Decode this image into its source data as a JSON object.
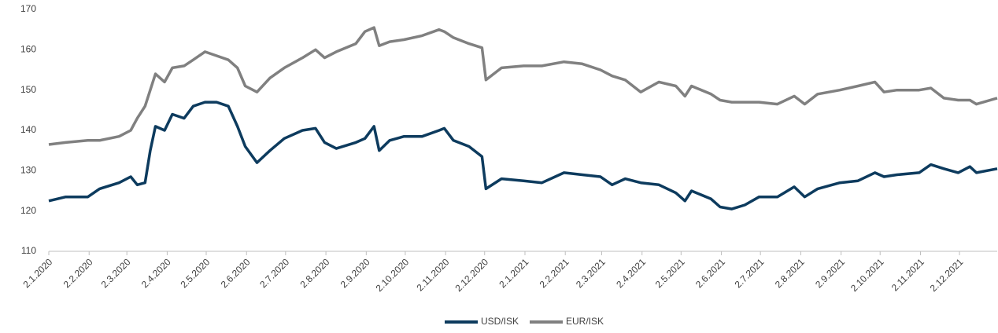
{
  "chart_data": {
    "type": "line",
    "x": [
      "2020-01-02",
      "2020-01-15",
      "2020-02-01",
      "2020-02-10",
      "2020-02-25",
      "2020-03-05",
      "2020-03-10",
      "2020-03-16",
      "2020-03-20",
      "2020-03-24",
      "2020-03-31",
      "2020-04-06",
      "2020-04-15",
      "2020-04-22",
      "2020-05-01",
      "2020-05-10",
      "2020-05-19",
      "2020-05-26",
      "2020-06-01",
      "2020-06-10",
      "2020-06-20",
      "2020-07-01",
      "2020-07-15",
      "2020-07-25",
      "2020-08-01",
      "2020-08-10",
      "2020-08-25",
      "2020-09-01",
      "2020-09-08",
      "2020-09-12",
      "2020-09-20",
      "2020-10-01",
      "2020-10-15",
      "2020-10-28",
      "2020-11-01",
      "2020-11-08",
      "2020-11-20",
      "2020-11-30",
      "2020-12-03",
      "2020-12-15",
      "2021-01-01",
      "2021-01-15",
      "2021-02-01",
      "2021-02-15",
      "2021-03-01",
      "2021-03-10",
      "2021-03-20",
      "2021-04-01",
      "2021-04-15",
      "2021-04-28",
      "2021-05-05",
      "2021-05-10",
      "2021-05-25",
      "2021-06-01",
      "2021-06-10",
      "2021-06-20",
      "2021-07-01",
      "2021-07-15",
      "2021-07-28",
      "2021-08-05",
      "2021-08-15",
      "2021-09-01",
      "2021-09-15",
      "2021-09-28",
      "2021-10-05",
      "2021-10-15",
      "2021-11-01",
      "2021-11-10",
      "2021-11-20",
      "2021-12-01",
      "2021-12-10",
      "2021-12-15",
      "2021-12-31"
    ],
    "series": [
      {
        "name": "USD/ISK",
        "color": "#0d3b5e",
        "values": [
          122.5,
          123.5,
          123.5,
          125.5,
          127,
          128.5,
          126.5,
          127,
          135,
          141,
          140,
          144,
          143,
          146,
          147,
          147,
          146,
          141,
          136,
          132,
          135,
          138,
          140,
          140.5,
          137,
          135.5,
          137,
          138,
          141,
          135,
          137.5,
          138.5,
          138.5,
          140,
          140.5,
          137.5,
          136,
          133.5,
          125.5,
          128,
          127.5,
          127,
          129.5,
          129,
          128.5,
          126.5,
          128,
          127,
          126.5,
          124.5,
          122.5,
          125,
          123,
          121,
          120.5,
          121.5,
          123.5,
          123.5,
          126,
          123.5,
          125.5,
          127,
          127.5,
          129.5,
          128.5,
          129,
          129.5,
          131.5,
          130.5,
          129.5,
          131,
          129.5,
          130.5
        ]
      },
      {
        "name": "EUR/ISK",
        "color": "#808080",
        "values": [
          136.5,
          137,
          137.5,
          137.5,
          138.5,
          140,
          143,
          146,
          150,
          154,
          152,
          155.5,
          156,
          157.5,
          159.5,
          158.5,
          157.5,
          155.5,
          151,
          149.5,
          153,
          155.5,
          158,
          160,
          158,
          159.5,
          161.5,
          164.5,
          165.5,
          161,
          162,
          162.5,
          163.5,
          165,
          164.5,
          163,
          161.5,
          160.5,
          152.5,
          155.5,
          156,
          156,
          157,
          156.5,
          155,
          153.5,
          152.5,
          149.5,
          152,
          151,
          148.5,
          151,
          149,
          147.5,
          147,
          147,
          147,
          146.5,
          148.5,
          146.5,
          149,
          150,
          151,
          152,
          149.5,
          150,
          150,
          150.5,
          148,
          147.5,
          147.5,
          146.5,
          148
        ]
      }
    ],
    "xlim": [
      "2020-01-02",
      "2021-12-31"
    ],
    "xticks": [
      {
        "value": "2020-01-02",
        "label": "2.1.2020"
      },
      {
        "value": "2020-02-02",
        "label": "2.2.2020"
      },
      {
        "value": "2020-03-02",
        "label": "2.3.2020"
      },
      {
        "value": "2020-04-02",
        "label": "2.4.2020"
      },
      {
        "value": "2020-05-02",
        "label": "2.5.2020"
      },
      {
        "value": "2020-06-02",
        "label": "2.6.2020"
      },
      {
        "value": "2020-07-02",
        "label": "2.7.2020"
      },
      {
        "value": "2020-08-02",
        "label": "2.8.2020"
      },
      {
        "value": "2020-09-02",
        "label": "2.9.2020"
      },
      {
        "value": "2020-10-02",
        "label": "2.10.2020"
      },
      {
        "value": "2020-11-02",
        "label": "2.11.2020"
      },
      {
        "value": "2020-12-02",
        "label": "2.12.2020"
      },
      {
        "value": "2021-01-02",
        "label": "2.1.2021"
      },
      {
        "value": "2021-02-02",
        "label": "2.2.2021"
      },
      {
        "value": "2021-03-02",
        "label": "2.3.2021"
      },
      {
        "value": "2021-04-02",
        "label": "2.4.2021"
      },
      {
        "value": "2021-05-02",
        "label": "2.5.2021"
      },
      {
        "value": "2021-06-02",
        "label": "2.6.2021"
      },
      {
        "value": "2021-07-02",
        "label": "2.7.2021"
      },
      {
        "value": "2021-08-02",
        "label": "2.8.2021"
      },
      {
        "value": "2021-09-02",
        "label": "2.9.2021"
      },
      {
        "value": "2021-10-02",
        "label": "2.10.2021"
      },
      {
        "value": "2021-11-02",
        "label": "2.11.2021"
      },
      {
        "value": "2021-12-02",
        "label": "2.12.2021"
      }
    ],
    "ylim": [
      110,
      170
    ],
    "yticks": [
      110,
      120,
      130,
      140,
      150,
      160,
      170
    ],
    "legend": "bottom"
  }
}
